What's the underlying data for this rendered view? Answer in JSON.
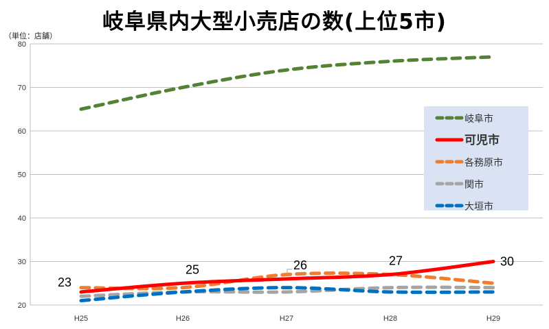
{
  "chart_data": {
    "type": "line",
    "title": "岐阜県内大型小売店の数(上位5市)",
    "unit_label": "（単位：店舗）",
    "categories": [
      "H25",
      "H26",
      "H27",
      "H28",
      "H29"
    ],
    "ylim": [
      20,
      80
    ],
    "yticks": [
      20,
      30,
      40,
      50,
      60,
      70,
      80
    ],
    "grid": true,
    "legend_position": "right",
    "series": [
      {
        "name": "岐阜市",
        "values": [
          65,
          70,
          74,
          76,
          77
        ],
        "color": "#548235",
        "dash": true,
        "width": 5
      },
      {
        "name": "可児市",
        "values": [
          23,
          25,
          26,
          27,
          30
        ],
        "color": "#ff0000",
        "dash": false,
        "width": 5,
        "bold_legend": true
      },
      {
        "name": "各務原市",
        "values": [
          24,
          24,
          27,
          27,
          25
        ],
        "color": "#ed7d31",
        "dash": true,
        "width": 5
      },
      {
        "name": "関市",
        "values": [
          22,
          23,
          23,
          24,
          24
        ],
        "color": "#a5a5a5",
        "dash": true,
        "width": 5
      },
      {
        "name": "大垣市",
        "values": [
          21,
          23,
          24,
          23,
          23
        ],
        "color": "#0070c0",
        "dash": true,
        "width": 5
      }
    ],
    "data_labels": [
      {
        "series": "可児市",
        "index": 0,
        "text": "23"
      },
      {
        "series": "可児市",
        "index": 1,
        "text": "25"
      },
      {
        "series": "可児市",
        "index": 2,
        "text": "26"
      },
      {
        "series": "可児市",
        "index": 3,
        "text": "27"
      },
      {
        "series": "可児市",
        "index": 4,
        "text": "30"
      }
    ]
  }
}
